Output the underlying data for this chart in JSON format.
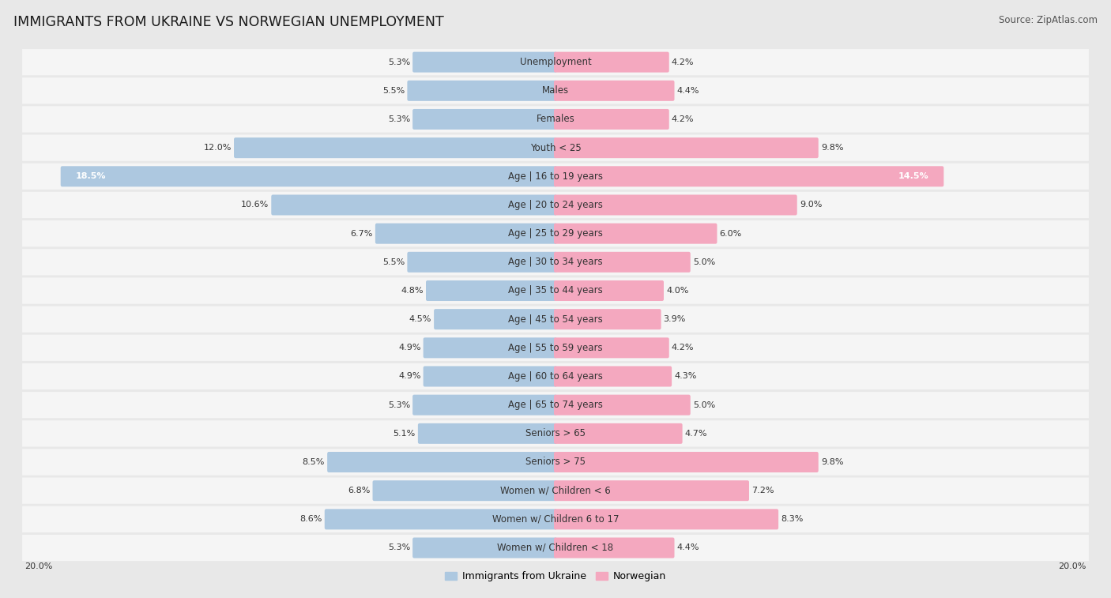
{
  "title": "IMMIGRANTS FROM UKRAINE VS NORWEGIAN UNEMPLOYMENT",
  "source": "Source: ZipAtlas.com",
  "categories": [
    "Unemployment",
    "Males",
    "Females",
    "Youth < 25",
    "Age | 16 to 19 years",
    "Age | 20 to 24 years",
    "Age | 25 to 29 years",
    "Age | 30 to 34 years",
    "Age | 35 to 44 years",
    "Age | 45 to 54 years",
    "Age | 55 to 59 years",
    "Age | 60 to 64 years",
    "Age | 65 to 74 years",
    "Seniors > 65",
    "Seniors > 75",
    "Women w/ Children < 6",
    "Women w/ Children 6 to 17",
    "Women w/ Children < 18"
  ],
  "ukraine_values": [
    5.3,
    5.5,
    5.3,
    12.0,
    18.5,
    10.6,
    6.7,
    5.5,
    4.8,
    4.5,
    4.9,
    4.9,
    5.3,
    5.1,
    8.5,
    6.8,
    8.6,
    5.3
  ],
  "norwegian_values": [
    4.2,
    4.4,
    4.2,
    9.8,
    14.5,
    9.0,
    6.0,
    5.0,
    4.0,
    3.9,
    4.2,
    4.3,
    5.0,
    4.7,
    9.8,
    7.2,
    8.3,
    4.4
  ],
  "ukraine_color": "#adc8e0",
  "norwegian_color": "#f4a8bf",
  "bg_color": "#e8e8e8",
  "row_bg": "#f5f5f5",
  "row_bg_alt": "#ebebeb",
  "axis_max": 20.0,
  "legend_ukraine": "Immigrants from Ukraine",
  "legend_norwegian": "Norwegian",
  "title_fontsize": 12.5,
  "source_fontsize": 8.5,
  "label_fontsize": 8.5,
  "value_fontsize": 8.0
}
